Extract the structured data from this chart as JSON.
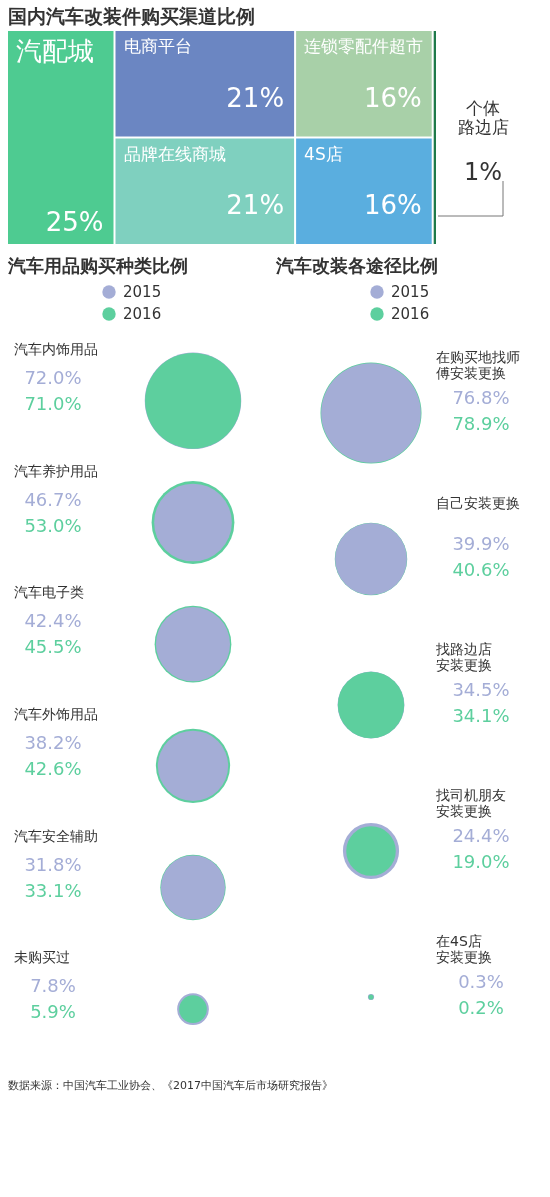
{
  "chart_data": [
    {
      "type": "other",
      "title": "国内汽车改装件购买渠道比例",
      "categories": [
        "汽配城",
        "电商平台",
        "品牌在线商城",
        "连锁零配件超市",
        "4S店",
        "个体路边店"
      ],
      "values": [
        25,
        21,
        21,
        16,
        16,
        1
      ],
      "value_labels": [
        "25%",
        "21%",
        "21%",
        "16%",
        "16%",
        "1%"
      ],
      "colors": [
        "#4ecb91",
        "#6b86c2",
        "#7fd0bf",
        "#a8d0a8",
        "#5aaedf",
        "#1f7a4a"
      ]
    },
    {
      "type": "other",
      "title": "汽车用品购买种类比例",
      "legend": "top",
      "categories": [
        "汽车内饰用品",
        "汽车养护用品",
        "汽车电子类",
        "汽车外饰用品",
        "汽车安全辅助",
        "未购买过"
      ],
      "series": [
        {
          "name": "2015",
          "color": "#a4add6",
          "values": [
            72.0,
            46.7,
            42.4,
            38.2,
            31.8,
            7.8
          ],
          "value_labels": [
            "72.0%",
            "46.7%",
            "42.4%",
            "38.2%",
            "31.8%",
            "7.8%"
          ]
        },
        {
          "name": "2016",
          "color": "#5dcf9e",
          "values": [
            71.0,
            53.0,
            45.5,
            42.6,
            33.1,
            5.9
          ],
          "value_labels": [
            "71.0%",
            "53.0%",
            "45.5%",
            "42.6%",
            "33.1%",
            "5.9%"
          ]
        }
      ]
    },
    {
      "type": "other",
      "title": "汽车改装各途径比例",
      "legend": "top",
      "categories": [
        "在购买地找师傅安装更换",
        "自己安装更换",
        "找路边店安装更换",
        "找司机朋友安装更换",
        "在4S店安装更换"
      ],
      "series": [
        {
          "name": "2015",
          "color": "#a4add6",
          "values": [
            76.8,
            39.9,
            34.5,
            24.4,
            0.3
          ],
          "value_labels": [
            "76.8%",
            "39.9%",
            "34.5%",
            "24.4%",
            "0.3%"
          ]
        },
        {
          "name": "2016",
          "color": "#5dcf9e",
          "values": [
            78.9,
            40.6,
            34.1,
            19.0,
            0.2
          ],
          "value_labels": [
            "78.9%",
            "40.6%",
            "34.1%",
            "19.0%",
            "0.2%"
          ]
        }
      ],
      "annotations": [
        "数据来源：中国汽车工业协会、《2017中国汽车后市场研究报告》"
      ]
    }
  ]
}
